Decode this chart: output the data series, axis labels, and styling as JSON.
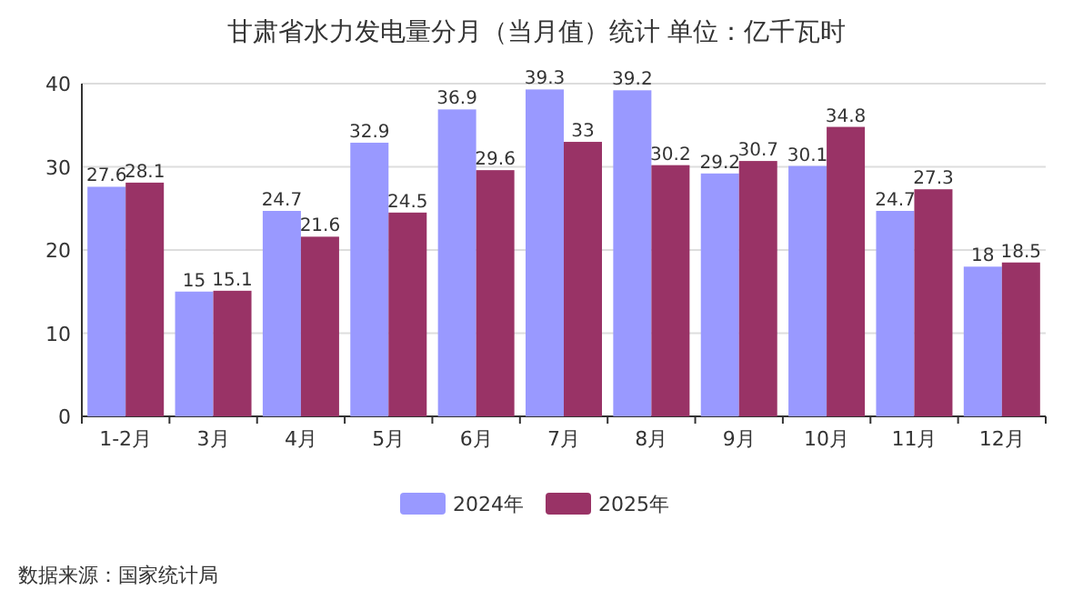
{
  "chart_data": {
    "type": "bar",
    "title": "甘肃省水力发电量分月（当月值）统计 单位：亿千瓦时",
    "categories": [
      "1-2月",
      "3月",
      "4月",
      "5月",
      "6月",
      "7月",
      "8月",
      "9月",
      "10月",
      "11月",
      "12月"
    ],
    "series": [
      {
        "name": "2024年",
        "color": "#9999ff",
        "values": [
          27.6,
          15,
          24.7,
          32.9,
          36.9,
          39.3,
          39.2,
          29.2,
          30.1,
          24.7,
          18
        ]
      },
      {
        "name": "2025年",
        "color": "#993366",
        "values": [
          28.1,
          15.1,
          21.6,
          24.5,
          29.6,
          33,
          30.2,
          30.7,
          34.8,
          27.3,
          18.5
        ]
      }
    ],
    "ylim": [
      0,
      40
    ],
    "yticks": [
      0,
      10,
      20,
      30,
      40
    ],
    "grid": "y",
    "legend": "bottom",
    "data_labels": true,
    "annotations": [
      "数据来源：国家统计局"
    ]
  }
}
